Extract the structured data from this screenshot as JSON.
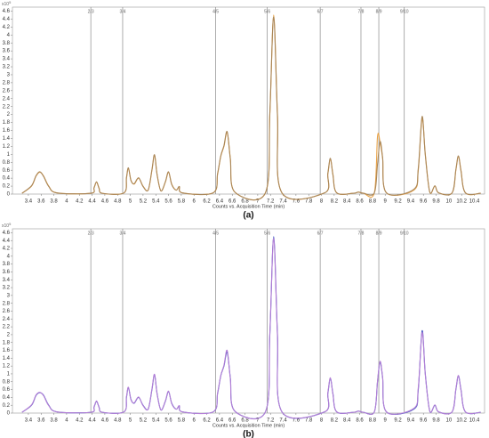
{
  "chart_data": [
    {
      "type": "line",
      "caption": "(a)",
      "x_label": "Counts vs. Acquisition Time (min)",
      "y_unit": "x10",
      "y_unit_exp": "5",
      "xlim": [
        3.15,
        10.56
      ],
      "ylim": [
        0,
        4.7
      ],
      "xticks": [
        3.4,
        3.6,
        3.8,
        4,
        4.2,
        4.4,
        4.6,
        4.8,
        5,
        5.2,
        5.4,
        5.6,
        5.8,
        6,
        6.2,
        6.4,
        6.6,
        6.8,
        7,
        7.2,
        7.4,
        7.6,
        7.8,
        8,
        8.2,
        8.4,
        8.6,
        8.8,
        9,
        9.2,
        9.4,
        9.6,
        9.8,
        10,
        10.2,
        10.4
      ],
      "yticks": [
        0,
        0.2,
        0.4,
        0.6,
        0.8,
        1,
        1.2,
        1.4,
        1.6,
        1.8,
        2,
        2.2,
        2.4,
        2.6,
        2.8,
        3,
        3.2,
        3.4,
        3.6,
        3.8,
        4,
        4.2,
        4.4,
        4.6
      ],
      "segments": [
        {
          "value": 4.38,
          "label": "2/3"
        },
        {
          "value": 4.88,
          "label": "3/4"
        },
        {
          "value": 6.34,
          "label": "4/5"
        },
        {
          "value": 7.15,
          "label": "5/6"
        },
        {
          "value": 7.98,
          "label": "6/7"
        },
        {
          "value": 8.62,
          "label": "7/8"
        },
        {
          "value": 8.9,
          "label": "8/9"
        },
        {
          "value": 9.3,
          "label": "9/10"
        }
      ],
      "x": [
        3.3,
        3.45,
        3.52,
        3.58,
        3.64,
        3.72,
        3.85,
        4.38,
        4.43,
        4.47,
        4.51,
        4.56,
        4.9,
        4.94,
        4.97,
        5.01,
        5.06,
        5.13,
        5.2,
        5.28,
        5.34,
        5.38,
        5.42,
        5.48,
        5.55,
        5.6,
        5.65,
        5.72,
        5.77,
        5.82,
        6.3,
        6.37,
        6.42,
        6.47,
        6.52,
        6.57,
        6.64,
        7.12,
        7.19,
        7.25,
        7.31,
        7.38,
        8.05,
        8.1,
        8.14,
        8.18,
        8.24,
        8.5,
        8.58,
        8.66,
        8.83,
        8.88,
        8.92,
        8.96,
        9.02,
        9.45,
        9.52,
        9.58,
        9.63,
        9.7,
        9.78,
        9.84,
        10.05,
        10.11,
        10.15,
        10.19,
        10.26,
        10.5
      ],
      "series": [
        {
          "color": "#e8a246",
          "values": [
            0.02,
            0.2,
            0.45,
            0.55,
            0.45,
            0.2,
            0.03,
            0.02,
            0.15,
            0.3,
            0.15,
            0.02,
            0.03,
            0.4,
            0.65,
            0.35,
            0.25,
            0.4,
            0.2,
            0.1,
            0.6,
            0.98,
            0.5,
            0.08,
            0.3,
            0.55,
            0.25,
            0.1,
            0.18,
            0.03,
            0.03,
            0.5,
            0.95,
            1.2,
            1.55,
            0.9,
            0.05,
            0.03,
            2.0,
            4.5,
            2.0,
            0.03,
            0.03,
            0.5,
            0.88,
            0.5,
            0.03,
            0.02,
            0.05,
            0.02,
            0.03,
            1.45,
            1.3,
            0.9,
            0.03,
            0.1,
            0.6,
            1.9,
            1.0,
            0.05,
            0.2,
            0.03,
            0.03,
            0.6,
            0.95,
            0.6,
            0.03,
            0.02
          ]
        },
        {
          "color": "#a9875a",
          "values": [
            0.02,
            0.21,
            0.46,
            0.56,
            0.44,
            0.19,
            0.03,
            0.02,
            0.16,
            0.31,
            0.14,
            0.02,
            0.03,
            0.42,
            0.66,
            0.34,
            0.26,
            0.41,
            0.19,
            0.1,
            0.62,
            0.99,
            0.49,
            0.08,
            0.31,
            0.56,
            0.24,
            0.1,
            0.19,
            0.03,
            0.03,
            0.52,
            0.96,
            1.22,
            1.57,
            0.88,
            0.05,
            0.03,
            2.05,
            4.45,
            1.95,
            0.03,
            0.03,
            0.52,
            0.9,
            0.48,
            0.03,
            0.02,
            0.05,
            0.02,
            0.03,
            0.75,
            1.32,
            0.92,
            0.03,
            0.12,
            0.65,
            1.95,
            0.98,
            0.05,
            0.21,
            0.03,
            0.03,
            0.62,
            0.96,
            0.58,
            0.03,
            0.02
          ]
        }
      ]
    },
    {
      "type": "line",
      "caption": "(b)",
      "x_label": "Counts vs. Acquisition Time (min)",
      "y_unit": "x10",
      "y_unit_exp": "5",
      "xlim": [
        3.15,
        10.56
      ],
      "ylim": [
        0,
        4.7
      ],
      "xticks": [
        3.4,
        3.6,
        3.8,
        4,
        4.2,
        4.4,
        4.6,
        4.8,
        5,
        5.2,
        5.4,
        5.6,
        5.8,
        6,
        6.2,
        6.4,
        6.6,
        6.8,
        7,
        7.2,
        7.4,
        7.6,
        7.8,
        8,
        8.2,
        8.4,
        8.6,
        8.8,
        9,
        9.2,
        9.4,
        9.6,
        9.8,
        10,
        10.2,
        10.4
      ],
      "yticks": [
        0,
        0.2,
        0.4,
        0.6,
        0.8,
        1,
        1.2,
        1.4,
        1.6,
        1.8,
        2,
        2.2,
        2.4,
        2.6,
        2.8,
        3,
        3.2,
        3.4,
        3.6,
        3.8,
        4,
        4.2,
        4.4,
        4.6
      ],
      "segments": [
        {
          "value": 4.38,
          "label": "2/3"
        },
        {
          "value": 4.88,
          "label": "3/4"
        },
        {
          "value": 6.34,
          "label": "4/5"
        },
        {
          "value": 7.15,
          "label": "5/6"
        },
        {
          "value": 7.98,
          "label": "6/7"
        },
        {
          "value": 8.62,
          "label": "7/8"
        },
        {
          "value": 8.9,
          "label": "8/9"
        },
        {
          "value": 9.3,
          "label": "9/10"
        }
      ],
      "x": [
        3.3,
        3.45,
        3.52,
        3.58,
        3.64,
        3.72,
        3.85,
        4.38,
        4.43,
        4.47,
        4.51,
        4.56,
        4.9,
        4.94,
        4.97,
        5.01,
        5.06,
        5.13,
        5.2,
        5.28,
        5.34,
        5.38,
        5.42,
        5.48,
        5.55,
        5.6,
        5.65,
        5.72,
        5.77,
        5.82,
        6.3,
        6.37,
        6.42,
        6.47,
        6.52,
        6.57,
        6.64,
        7.12,
        7.19,
        7.25,
        7.31,
        7.38,
        8.05,
        8.1,
        8.14,
        8.18,
        8.24,
        8.5,
        8.58,
        8.66,
        8.83,
        8.88,
        8.92,
        8.96,
        9.02,
        9.45,
        9.52,
        9.58,
        9.63,
        9.7,
        9.78,
        9.84,
        10.05,
        10.11,
        10.15,
        10.19,
        10.26,
        10.5
      ],
      "series": [
        {
          "color": "#4a5cc4",
          "values": [
            0.02,
            0.2,
            0.45,
            0.52,
            0.45,
            0.2,
            0.03,
            0.02,
            0.15,
            0.3,
            0.15,
            0.02,
            0.03,
            0.4,
            0.65,
            0.35,
            0.25,
            0.4,
            0.2,
            0.1,
            0.6,
            0.98,
            0.5,
            0.08,
            0.3,
            0.55,
            0.25,
            0.1,
            0.18,
            0.03,
            0.03,
            0.5,
            0.95,
            1.2,
            1.55,
            0.9,
            0.05,
            0.03,
            2.0,
            4.5,
            2.0,
            0.03,
            0.03,
            0.5,
            0.88,
            0.5,
            0.03,
            0.02,
            0.05,
            0.02,
            0.03,
            0.8,
            1.3,
            0.9,
            0.03,
            0.1,
            0.6,
            2.1,
            1.0,
            0.05,
            0.2,
            0.03,
            0.03,
            0.6,
            0.95,
            0.6,
            0.03,
            0.02
          ]
        },
        {
          "color": "#b47fd6",
          "values": [
            0.02,
            0.21,
            0.46,
            0.53,
            0.44,
            0.19,
            0.03,
            0.02,
            0.16,
            0.31,
            0.14,
            0.02,
            0.03,
            0.42,
            0.66,
            0.34,
            0.26,
            0.41,
            0.19,
            0.1,
            0.62,
            0.99,
            0.49,
            0.08,
            0.31,
            0.56,
            0.24,
            0.1,
            0.19,
            0.03,
            0.03,
            0.52,
            0.96,
            1.22,
            1.6,
            0.88,
            0.05,
            0.03,
            2.05,
            4.45,
            1.95,
            0.03,
            0.03,
            0.52,
            0.9,
            0.48,
            0.03,
            0.02,
            0.05,
            0.02,
            0.03,
            0.82,
            1.32,
            0.92,
            0.03,
            0.12,
            0.65,
            2.05,
            0.98,
            0.05,
            0.21,
            0.03,
            0.03,
            0.62,
            0.96,
            0.58,
            0.03,
            0.02
          ]
        }
      ]
    }
  ]
}
